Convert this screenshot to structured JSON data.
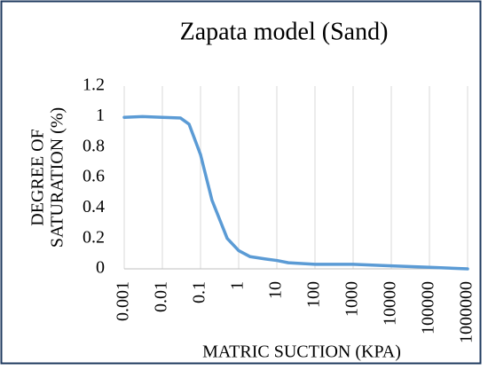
{
  "chart_data": {
    "type": "line",
    "title": "Zapata model (Sand)",
    "xlabel": "MATRIC SUCTION (KPA)",
    "ylabel": [
      "DEGREE OF",
      "SATURATION (%)"
    ],
    "xscale": "log",
    "x": [
      0.001,
      0.003,
      0.01,
      0.03,
      0.05,
      0.1,
      0.2,
      0.5,
      1,
      2,
      5,
      10,
      20,
      100,
      1000,
      10000,
      100000,
      1000000
    ],
    "series": [
      {
        "name": "Zapata model (Sand)",
        "color": "#5b9bd5",
        "values": [
          0.995,
          1.0,
          0.995,
          0.99,
          0.95,
          0.75,
          0.45,
          0.2,
          0.12,
          0.08,
          0.065,
          0.055,
          0.04,
          0.03,
          0.03,
          0.02,
          0.01,
          0.0
        ]
      }
    ],
    "xlim": [
      0.001,
      1000000
    ],
    "xticks": [
      0.001,
      0.01,
      0.1,
      1,
      10,
      100,
      1000,
      10000,
      100000,
      1000000
    ],
    "ylim": [
      0,
      1.2
    ],
    "yticks": [
      0,
      0.2,
      0.4,
      0.6,
      0.8,
      1,
      1.2
    ],
    "grid": "x"
  }
}
